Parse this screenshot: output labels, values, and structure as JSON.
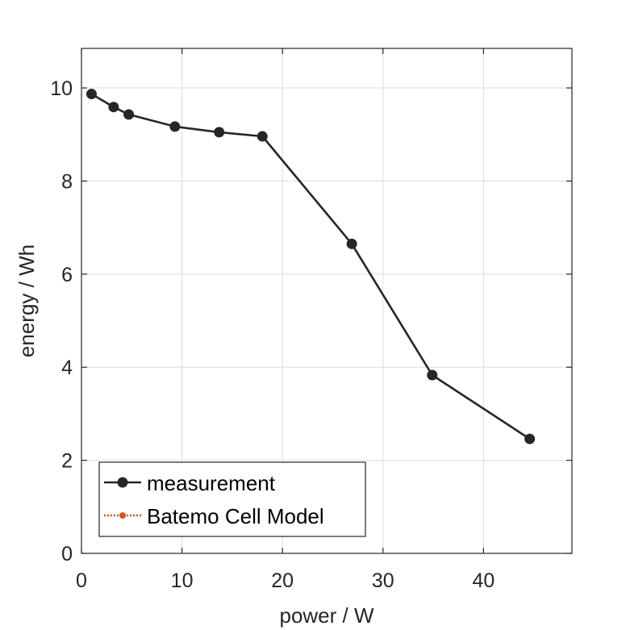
{
  "chart_data": {
    "type": "line",
    "title": "",
    "xlabel": "power / W",
    "ylabel": "energy / Wh",
    "xlim": [
      0,
      48.8
    ],
    "ylim": [
      0,
      10.85
    ],
    "xticks": [
      0,
      10,
      20,
      30,
      40
    ],
    "yticks": [
      0,
      2,
      4,
      6,
      8,
      10
    ],
    "grid": true,
    "legend": {
      "placement": "bottom-left"
    },
    "series": [
      {
        "name": "measurement",
        "color": "#262626",
        "marker": "circle",
        "line": "solid",
        "x": [
          1.0,
          3.2,
          4.7,
          9.3,
          13.7,
          18.0,
          26.9,
          34.9,
          44.6
        ],
        "y": [
          9.87,
          9.59,
          9.43,
          9.17,
          9.05,
          8.96,
          6.65,
          3.83,
          2.46
        ]
      },
      {
        "name": "Batemo Cell Model",
        "color": "#d95319",
        "marker": "circle",
        "line": "dotted",
        "x": [],
        "y": []
      }
    ]
  }
}
